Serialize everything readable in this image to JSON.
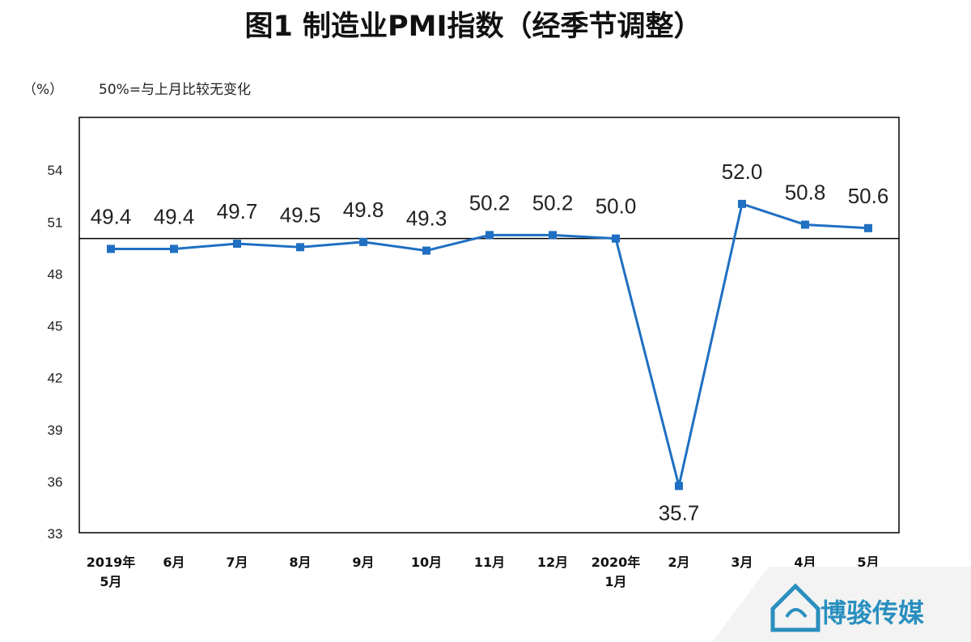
{
  "chart_data": {
    "type": "line",
    "title": "图1 制造业PMI指数（经季节调整）",
    "unit_label": "（%）",
    "note": "50%=与上月比较无变化",
    "categories": [
      [
        "2019年",
        "5月"
      ],
      [
        "6月"
      ],
      [
        "7月"
      ],
      [
        "8月"
      ],
      [
        "9月"
      ],
      [
        "10月"
      ],
      [
        "11月"
      ],
      [
        "12月"
      ],
      [
        "2020年",
        "1月"
      ],
      [
        "2月"
      ],
      [
        "3月"
      ],
      [
        "4月"
      ],
      [
        "5月"
      ]
    ],
    "series": [
      {
        "values": [
          49.4,
          49.4,
          49.7,
          49.5,
          49.8,
          49.3,
          50.2,
          50.2,
          50.0,
          35.7,
          52.0,
          50.8,
          50.6
        ]
      }
    ],
    "data_labels": [
      "49.4",
      "49.4",
      "49.7",
      "49.5",
      "49.8",
      "49.3",
      "50.2",
      "50.2",
      "50.0",
      "35.7",
      "52.0",
      "50.8",
      "50.6"
    ],
    "reference_line": 50,
    "ylim": [
      33,
      57
    ],
    "yticks": [
      33,
      36,
      39,
      42,
      45,
      48,
      51,
      54
    ],
    "grid": false,
    "line_color": "#1f6fc2",
    "reference_color": "#000000"
  },
  "watermark": {
    "text": "博骏传媒",
    "color": "#2a8fbf"
  }
}
